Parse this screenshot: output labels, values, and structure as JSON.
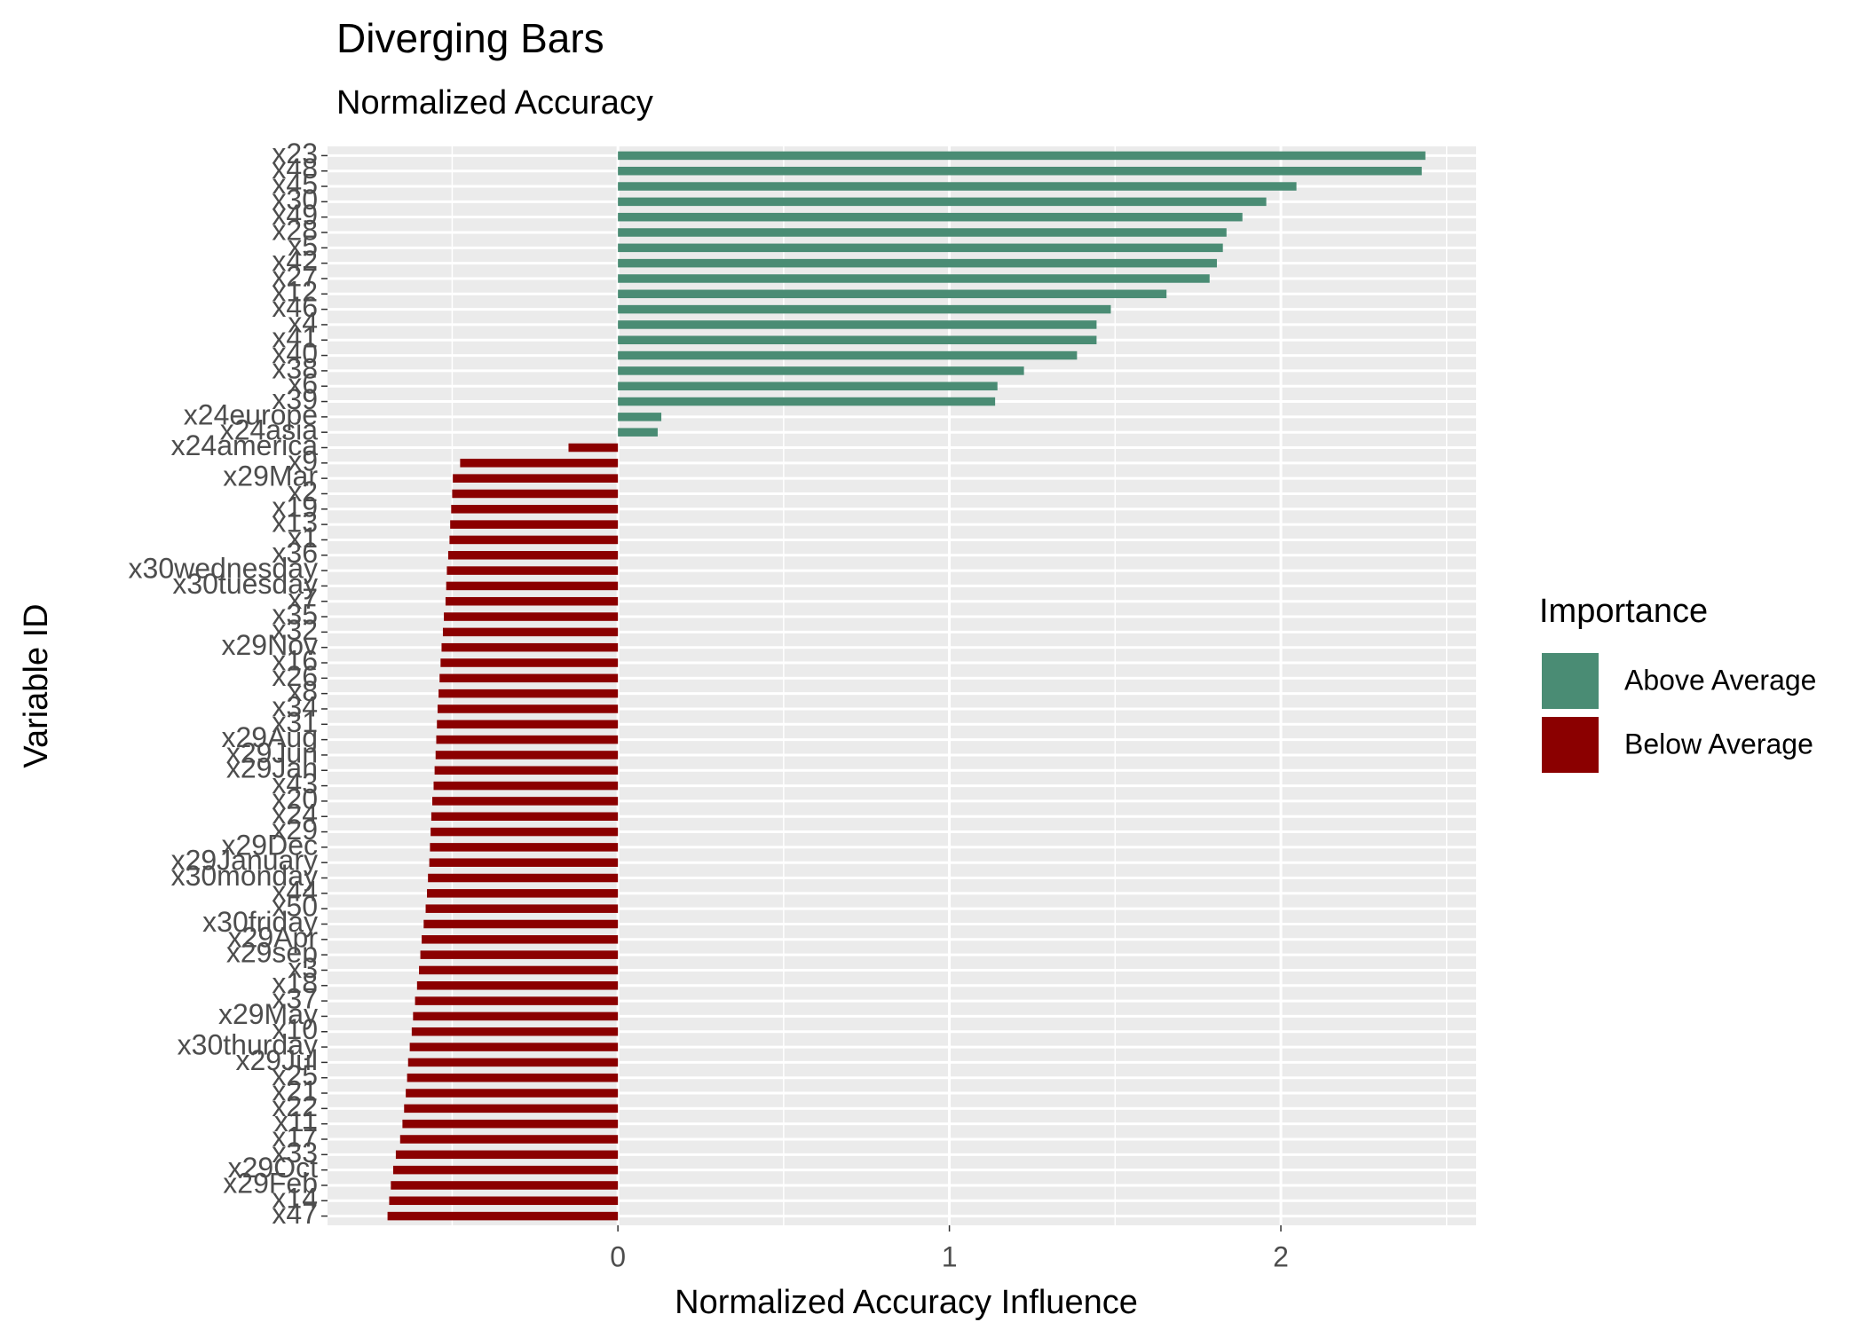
{
  "chart_data": {
    "type": "bar",
    "orientation": "horizontal",
    "title": "Diverging Bars",
    "subtitle": "Normalized Accuracy",
    "x_label": "Normalized Accuracy Influence",
    "y_label": "Variable ID",
    "legend_title": "Importance",
    "legend_position": "right",
    "grid": true,
    "xlim": [
      -0.876,
      2.589
    ],
    "xticks": [
      0,
      1,
      2
    ],
    "categories": [
      "x23",
      "x48",
      "x45",
      "x30",
      "x49",
      "x28",
      "x5",
      "x42",
      "x27",
      "x12",
      "x46",
      "x4",
      "x41",
      "x40",
      "x38",
      "x6",
      "x39",
      "x24europe",
      "x24asia",
      "x24america",
      "x9",
      "x29Mar",
      "x2",
      "x19",
      "x13",
      "x1",
      "x36",
      "x30wednesday",
      "x30tuesday",
      "x7",
      "x35",
      "x32",
      "x29Nov",
      "x16",
      "x26",
      "x8",
      "x34",
      "x31",
      "x29Aug",
      "x29Jun",
      "x29Jan",
      "x43",
      "x20",
      "x24",
      "x29",
      "x29Dec",
      "x29January",
      "x30monday",
      "x44",
      "x50",
      "x30friday",
      "x29Apr",
      "x29sep",
      "x3",
      "x18",
      "x37",
      "x29May",
      "x10",
      "x30thurday",
      "x29Jul",
      "x25",
      "x21",
      "x22",
      "x11",
      "x17",
      "x33",
      "x29Oct",
      "x29Feb",
      "x14",
      "x47"
    ],
    "series": [
      {
        "name": "Above Average",
        "color": "#4a8c74",
        "values": [
          2.436,
          2.425,
          2.047,
          1.956,
          1.884,
          1.836,
          1.825,
          1.807,
          1.785,
          1.655,
          1.487,
          1.444,
          1.444,
          1.385,
          1.225,
          1.145,
          1.138,
          0.131,
          0.12,
          null,
          null,
          null,
          null,
          null,
          null,
          null,
          null,
          null,
          null,
          null,
          null,
          null,
          null,
          null,
          null,
          null,
          null,
          null,
          null,
          null,
          null,
          null,
          null,
          null,
          null,
          null,
          null,
          null,
          null,
          null,
          null,
          null,
          null,
          null,
          null,
          null,
          null,
          null,
          null,
          null,
          null,
          null,
          null,
          null,
          null,
          null,
          null,
          null,
          null,
          null
        ]
      },
      {
        "name": "Below Average",
        "color": "#8b0000",
        "values": [
          null,
          null,
          null,
          null,
          null,
          null,
          null,
          null,
          null,
          null,
          null,
          null,
          null,
          null,
          null,
          null,
          null,
          null,
          null,
          -0.149,
          -0.476,
          -0.498,
          -0.5,
          -0.503,
          -0.506,
          -0.508,
          -0.512,
          -0.516,
          -0.518,
          -0.52,
          -0.525,
          -0.528,
          -0.532,
          -0.535,
          -0.538,
          -0.541,
          -0.544,
          -0.546,
          -0.548,
          -0.55,
          -0.553,
          -0.556,
          -0.56,
          -0.563,
          -0.565,
          -0.567,
          -0.569,
          -0.573,
          -0.576,
          -0.58,
          -0.586,
          -0.592,
          -0.596,
          -0.6,
          -0.606,
          -0.612,
          -0.618,
          -0.622,
          -0.628,
          -0.633,
          -0.636,
          -0.64,
          -0.645,
          -0.65,
          -0.657,
          -0.67,
          -0.678,
          -0.685,
          -0.69,
          -0.695
        ]
      }
    ]
  }
}
